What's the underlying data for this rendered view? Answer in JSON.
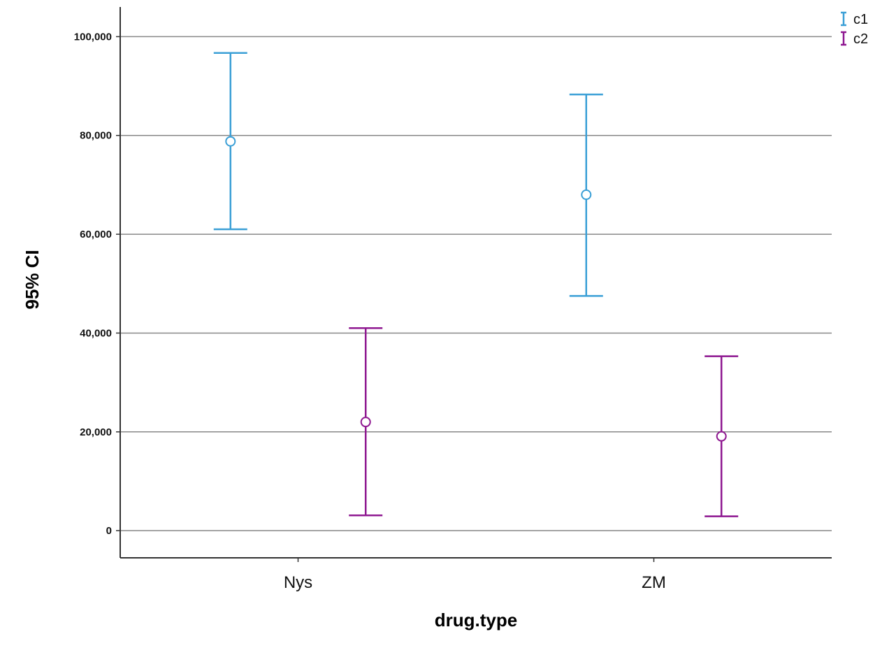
{
  "chart_data": {
    "type": "errorbar",
    "title": "",
    "xlabel": "drug.type",
    "ylabel": "95% CI",
    "categories": [
      "Nys",
      "ZM"
    ],
    "ylim": [
      -5500,
      106000
    ],
    "yticks": [
      0,
      20000,
      40000,
      60000,
      80000,
      100000
    ],
    "ytick_labels": [
      "0",
      "20,000",
      "40,000",
      "60,000",
      "80,000",
      "100,000"
    ],
    "grid": true,
    "legend_position": "top-right",
    "series": [
      {
        "name": "c1",
        "color": "#3a9fd6",
        "mean": [
          78800,
          68000
        ],
        "lower": [
          61000,
          47500
        ],
        "upper": [
          96700,
          88300
        ]
      },
      {
        "name": "c2",
        "color": "#8e1790",
        "mean": [
          22000,
          19100
        ],
        "lower": [
          3100,
          2900
        ],
        "upper": [
          41000,
          35300
        ]
      }
    ]
  }
}
